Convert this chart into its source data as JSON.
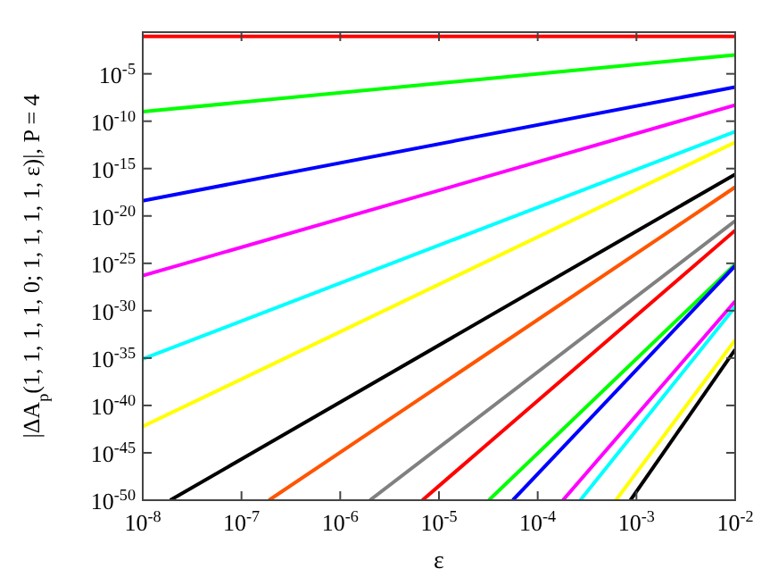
{
  "chart_data": {
    "type": "line",
    "xlabel": "ε",
    "ylabel": "|ΔA$_{p}$(1, 1, 1, 1, 0; 1, 1, 1, 1, ε)|, P = 4",
    "log": "xy",
    "grid": false,
    "marker": "none",
    "line_style": "solid",
    "xlim": [
      1e-08,
      0.01
    ],
    "ylim": [
      1e-50,
      0.25
    ],
    "xticks": [
      {
        "value": 1e-08,
        "label": "10$^{-8}$"
      },
      {
        "value": 1e-07,
        "label": "10$^{-7}$"
      },
      {
        "value": 1e-06,
        "label": "10$^{-6}$"
      },
      {
        "value": 1e-05,
        "label": "10$^{-5}$"
      },
      {
        "value": 0.0001,
        "label": "10$^{-4}$"
      },
      {
        "value": 0.001,
        "label": "10$^{-3}$"
      },
      {
        "value": 0.01,
        "label": "10$^{-2}$"
      }
    ],
    "yticks": [
      {
        "value": 1e-50,
        "label": "10$^{-50}$"
      },
      {
        "value": 1e-45,
        "label": "10$^{-45}$"
      },
      {
        "value": 1e-40,
        "label": "10$^{-40}$"
      },
      {
        "value": 1e-35,
        "label": "10$^{-35}$"
      },
      {
        "value": 1e-30,
        "label": "10$^{-30}$"
      },
      {
        "value": 1e-25,
        "label": "10$^{-25}$"
      },
      {
        "value": 1e-20,
        "label": "10$^{-20}$"
      },
      {
        "value": 1e-15,
        "label": "10$^{-15}$"
      },
      {
        "value": 1e-10,
        "label": "10$^{-10}$"
      },
      {
        "value": 1e-05,
        "label": "10$^{-5}$"
      }
    ],
    "series": [
      {
        "color": "#ff0000",
        "x": [
          1e-08,
          0.01
        ],
        "values": [
          0.09,
          0.09
        ]
      },
      {
        "color": "#00ff00",
        "x": [
          1e-08,
          0.01
        ],
        "values": [
          1e-09,
          0.001
        ]
      },
      {
        "color": "#0000ff",
        "x": [
          1e-08,
          0.01
        ],
        "values": [
          4e-19,
          4e-07
        ]
      },
      {
        "color": "#ff00ff",
        "x": [
          1e-08,
          0.01
        ],
        "values": [
          5e-27,
          5e-09
        ]
      },
      {
        "color": "#00ffff",
        "x": [
          1e-08,
          0.01
        ],
        "values": [
          8e-36,
          8e-12
        ]
      },
      {
        "color": "#ffff00",
        "x": [
          1e-08,
          0.01
        ],
        "values": [
          6e-43,
          6e-13
        ]
      },
      {
        "color": "#000000",
        "x": [
          1.9e-08,
          0.01
        ],
        "values": [
          1e-50,
          2.5e-16
        ]
      },
      {
        "color": "#ff5500",
        "x": [
          1.9e-07,
          0.01
        ],
        "values": [
          1e-50,
          1.1e-17
        ]
      },
      {
        "color": "#808080",
        "x": [
          2e-06,
          0.01
        ],
        "values": [
          1e-50,
          3e-21
        ]
      },
      {
        "color": "#ff0000",
        "x": [
          6.8e-06,
          0.01
        ],
        "values": [
          1e-50,
          3e-22
        ]
      },
      {
        "color": "#00ff00",
        "x": [
          3.2e-05,
          0.01
        ],
        "values": [
          1e-50,
          8e-26
        ]
      },
      {
        "color": "#0000ff",
        "x": [
          5.6e-05,
          0.01
        ],
        "values": [
          1e-50,
          5.6e-26
        ]
      },
      {
        "color": "#ff00ff",
        "x": [
          0.00018,
          0.01
        ],
        "values": [
          1e-50,
          1e-29
        ]
      },
      {
        "color": "#00ffff",
        "x": [
          0.00027,
          0.01
        ],
        "values": [
          1e-50,
          2.5e-30
        ]
      },
      {
        "color": "#ffff00",
        "x": [
          0.00062,
          0.01
        ],
        "values": [
          1e-50,
          8e-34
        ]
      },
      {
        "color": "#000000",
        "x": [
          0.00087,
          0.01
        ],
        "values": [
          1e-50,
          8e-35
        ]
      }
    ]
  }
}
